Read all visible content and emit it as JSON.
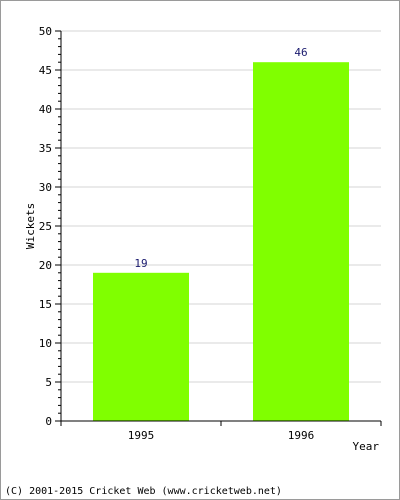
{
  "chart_data": {
    "type": "bar",
    "categories": [
      "1995",
      "1996"
    ],
    "values": [
      19,
      46
    ],
    "data_labels": [
      "19",
      "46"
    ],
    "title": "",
    "xlabel": "Year",
    "ylabel": "Wickets",
    "ylim": [
      0,
      50
    ],
    "yticks": [
      0,
      5,
      10,
      15,
      20,
      25,
      30,
      35,
      40,
      45,
      50
    ],
    "minor_ticks_per_major": 5,
    "grid": true,
    "legend": "none",
    "colors": {
      "bar": "#80ff00",
      "data_label": "#1a1a6e",
      "grid": "#d4d4d4",
      "axis": "#000000"
    }
  },
  "footer": {
    "copyright": "(C) 2001-2015 Cricket Web (www.cricketweb.net)"
  }
}
